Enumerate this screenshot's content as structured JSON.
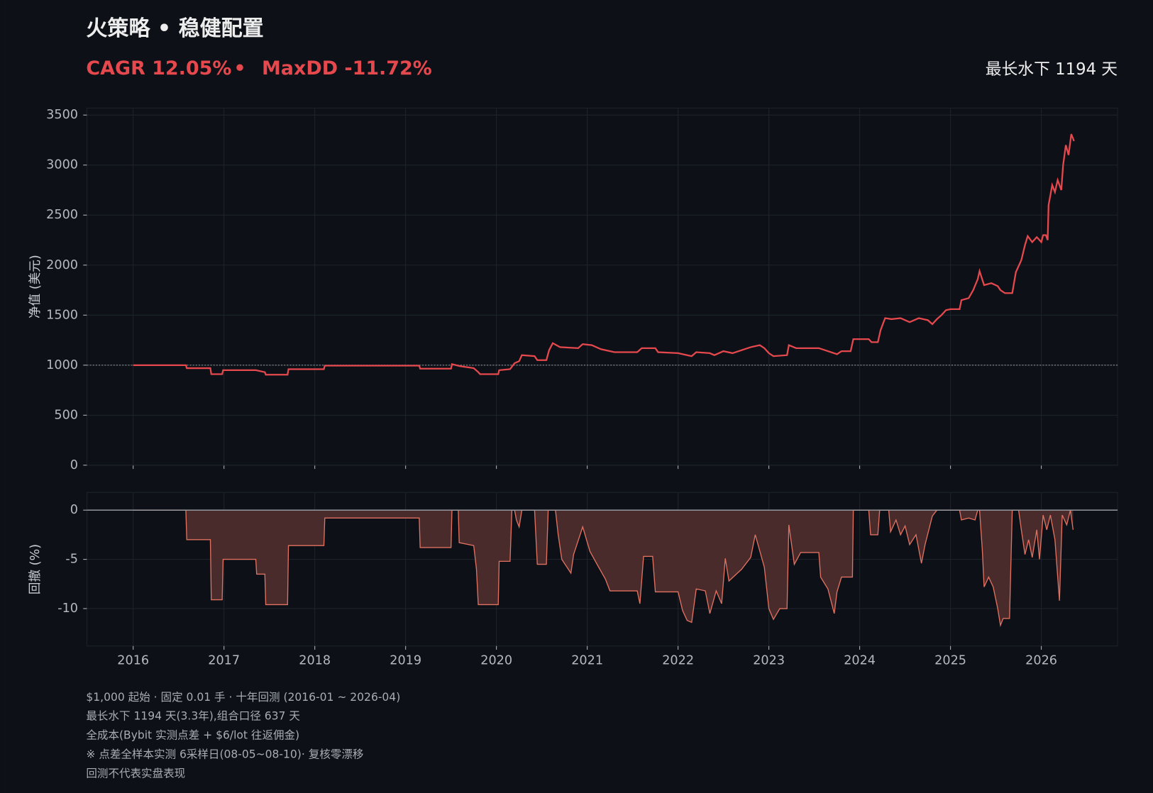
{
  "header": {
    "title": "火策略 • 稳健配置",
    "metric_cagr": "CAGR 12.05%",
    "separator": "•",
    "metric_maxdd": "MaxDD -11.72%",
    "right_note": "最长水下 1194 天"
  },
  "chart_data": [
    {
      "type": "line",
      "ylabel": "净值 (美元)",
      "color": "#e5484d",
      "grid": true,
      "reference_line": 1000,
      "xlim": [
        2015.49,
        2026.84
      ],
      "xticks": [
        2016,
        2017,
        2018,
        2019,
        2020,
        2021,
        2022,
        2023,
        2024,
        2025,
        2026
      ],
      "ylim": [
        0,
        3570
      ],
      "yticks": [
        0,
        500,
        1000,
        1500,
        2000,
        2500,
        3000,
        3500
      ],
      "x": [
        2016.0,
        2016.58,
        2016.59,
        2016.85,
        2016.86,
        2016.98,
        2016.99,
        2017.35,
        2017.45,
        2017.46,
        2017.7,
        2017.71,
        2018.1,
        2018.11,
        2019.15,
        2019.16,
        2019.5,
        2019.51,
        2019.6,
        2019.75,
        2019.8,
        2019.82,
        2020.02,
        2020.03,
        2020.15,
        2020.2,
        2020.25,
        2020.28,
        2020.42,
        2020.45,
        2020.55,
        2020.58,
        2020.62,
        2020.7,
        2020.9,
        2020.95,
        2021.05,
        2021.15,
        2021.3,
        2021.55,
        2021.6,
        2021.75,
        2021.78,
        2022.0,
        2022.1,
        2022.15,
        2022.2,
        2022.35,
        2022.4,
        2022.5,
        2022.6,
        2022.7,
        2022.8,
        2022.9,
        2022.95,
        2023.0,
        2023.05,
        2023.2,
        2023.22,
        2023.3,
        2023.55,
        2023.65,
        2023.75,
        2023.8,
        2023.9,
        2023.93,
        2024.1,
        2024.13,
        2024.2,
        2024.23,
        2024.28,
        2024.35,
        2024.45,
        2024.55,
        2024.65,
        2024.75,
        2024.8,
        2024.85,
        2024.9,
        2024.95,
        2025.0,
        2025.1,
        2025.12,
        2025.2,
        2025.25,
        2025.3,
        2025.32,
        2025.37,
        2025.45,
        2025.52,
        2025.55,
        2025.6,
        2025.68,
        2025.72,
        2025.78,
        2025.82,
        2025.85,
        2025.9,
        2025.95,
        2026.0,
        2026.02,
        2026.05,
        2026.07,
        2026.08,
        2026.12,
        2026.15,
        2026.18,
        2026.22,
        2026.24,
        2026.27,
        2026.3,
        2026.33,
        2026.36
      ],
      "values": [
        1000,
        1000,
        970,
        970,
        910,
        910,
        950,
        950,
        930,
        905,
        905,
        960,
        960,
        995,
        995,
        965,
        965,
        1010,
        990,
        970,
        930,
        910,
        910,
        950,
        960,
        1020,
        1040,
        1100,
        1090,
        1050,
        1050,
        1150,
        1220,
        1180,
        1170,
        1210,
        1200,
        1160,
        1130,
        1130,
        1170,
        1170,
        1130,
        1120,
        1100,
        1090,
        1130,
        1120,
        1100,
        1140,
        1120,
        1150,
        1180,
        1200,
        1170,
        1120,
        1090,
        1100,
        1200,
        1170,
        1170,
        1140,
        1110,
        1140,
        1140,
        1260,
        1260,
        1230,
        1230,
        1350,
        1470,
        1460,
        1470,
        1430,
        1470,
        1450,
        1410,
        1460,
        1500,
        1550,
        1560,
        1560,
        1650,
        1670,
        1750,
        1860,
        1940,
        1800,
        1820,
        1790,
        1750,
        1720,
        1720,
        1930,
        2050,
        2200,
        2290,
        2230,
        2280,
        2230,
        2300,
        2300,
        2250,
        2600,
        2800,
        2730,
        2850,
        2750,
        3000,
        3200,
        3100,
        3310,
        3240
      ]
    },
    {
      "type": "area",
      "ylabel": "回撤 (%)",
      "color": "#e0705f",
      "fill": "#4a2b2c",
      "grid": true,
      "xlim": [
        2015.49,
        2026.84
      ],
      "xticks": [
        2016,
        2017,
        2018,
        2019,
        2020,
        2021,
        2022,
        2023,
        2024,
        2025,
        2026
      ],
      "ylim": [
        -13.8,
        1.8
      ],
      "yticks": [
        -10,
        -5,
        0
      ],
      "x": [
        2016.0,
        2016.58,
        2016.59,
        2016.85,
        2016.86,
        2016.98,
        2016.99,
        2017.35,
        2017.36,
        2017.45,
        2017.46,
        2017.7,
        2017.71,
        2018.1,
        2018.11,
        2019.15,
        2019.16,
        2019.5,
        2019.51,
        2019.58,
        2019.59,
        2019.75,
        2019.78,
        2019.8,
        2020.02,
        2020.03,
        2020.15,
        2020.17,
        2020.2,
        2020.22,
        2020.25,
        2020.28,
        2020.42,
        2020.45,
        2020.55,
        2020.57,
        2020.65,
        2020.68,
        2020.72,
        2020.82,
        2020.85,
        2020.95,
        2021.03,
        2021.12,
        2021.2,
        2021.25,
        2021.55,
        2021.58,
        2021.62,
        2021.72,
        2021.75,
        2022.0,
        2022.05,
        2022.1,
        2022.15,
        2022.2,
        2022.3,
        2022.35,
        2022.42,
        2022.48,
        2022.52,
        2022.56,
        2022.7,
        2022.8,
        2022.85,
        2022.95,
        2023.0,
        2023.05,
        2023.12,
        2023.2,
        2023.22,
        2023.28,
        2023.35,
        2023.55,
        2023.57,
        2023.65,
        2023.72,
        2023.75,
        2023.8,
        2023.92,
        2023.93,
        2024.1,
        2024.12,
        2024.2,
        2024.22,
        2024.32,
        2024.34,
        2024.4,
        2024.45,
        2024.5,
        2024.55,
        2024.62,
        2024.68,
        2024.72,
        2024.8,
        2024.85,
        2025.1,
        2025.12,
        2025.2,
        2025.27,
        2025.3,
        2025.32,
        2025.35,
        2025.37,
        2025.42,
        2025.47,
        2025.52,
        2025.55,
        2025.58,
        2025.65,
        2025.68,
        2025.75,
        2025.78,
        2025.82,
        2025.86,
        2025.9,
        2025.95,
        2025.98,
        2026.02,
        2026.06,
        2026.1,
        2026.15,
        2026.2,
        2026.23,
        2026.28,
        2026.32,
        2026.35
      ],
      "values": [
        0,
        0,
        -3,
        -3,
        -9.1,
        -9.1,
        -5,
        -5,
        -6.5,
        -6.5,
        -9.6,
        -9.6,
        -3.6,
        -3.6,
        -0.8,
        -0.8,
        -3.8,
        -3.8,
        0,
        0,
        -3.3,
        -3.6,
        -6,
        -9.6,
        -9.6,
        -5.2,
        -5.2,
        0,
        0,
        -1,
        -1.7,
        0,
        0,
        -5.5,
        -5.5,
        0,
        0,
        -2.5,
        -5,
        -6.4,
        -4.5,
        -1.7,
        -4.2,
        -5.7,
        -7,
        -8.2,
        -8.2,
        -9.5,
        -4.7,
        -4.7,
        -8.3,
        -8.3,
        -10.2,
        -11.2,
        -11.4,
        -8,
        -8.2,
        -10.5,
        -8.2,
        -9.5,
        -4.9,
        -7.2,
        -6,
        -4.8,
        -2.5,
        -5.8,
        -10,
        -11.1,
        -10,
        -10,
        -1.5,
        -5.5,
        -4.3,
        -4.3,
        -6.8,
        -8,
        -10.5,
        -8.3,
        -6.8,
        -6.8,
        0,
        0,
        -2.5,
        -2.5,
        0,
        0,
        -2.2,
        -1,
        -2.5,
        -1.6,
        -3.5,
        -2.5,
        -5.4,
        -3.5,
        -0.6,
        0,
        0,
        -1,
        -0.8,
        -1,
        0,
        0,
        -4,
        -7.8,
        -6.8,
        -7.8,
        -10,
        -11.7,
        -11,
        -11,
        0,
        0,
        -2,
        -4.5,
        -3,
        -4.8,
        -2,
        -5,
        -0.5,
        -2,
        -0.5,
        -3,
        -9.2,
        -0.5,
        -1.5,
        0,
        -2
      ]
    }
  ],
  "footnotes": [
    "$1,000 起始 · 固定 0.01 手 · 十年回测 (2016-01 ~ 2026-04)",
    "最长水下 1194 天(3.3年),组合口径 637 天",
    "全成本(Bybit 实测点差 + $6/lot 往返佣金)",
    "※ 点差全样本实测 6采样日(08-05~08-10)· 复核零漂移",
    "回测不代表实盘表现"
  ]
}
